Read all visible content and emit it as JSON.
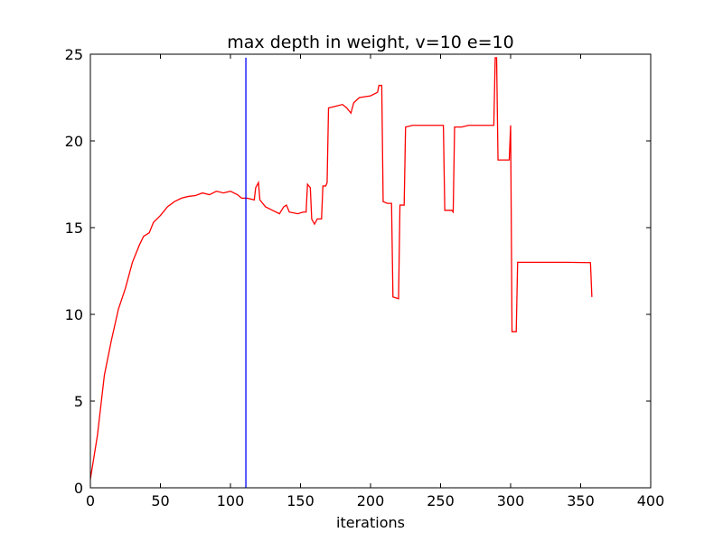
{
  "chart_data": {
    "type": "line",
    "title": "max depth in weight, v=10 e=10",
    "xlabel": "iterations",
    "series": [
      {
        "color": "#ff0000",
        "x": [
          0,
          5,
          10,
          15,
          20,
          25,
          30,
          35,
          38,
          42,
          45,
          50,
          55,
          60,
          65,
          70,
          75,
          80,
          85,
          90,
          95,
          100,
          105,
          108,
          112,
          117,
          118,
          120,
          121,
          125,
          130,
          135,
          138,
          140,
          142,
          148,
          152,
          154,
          155,
          157,
          158,
          160,
          162,
          165,
          166,
          168,
          169,
          170,
          175,
          180,
          183,
          186,
          188,
          192,
          200,
          205,
          206,
          208,
          209,
          212,
          215,
          216,
          220,
          221,
          224,
          225,
          230,
          240,
          252,
          253,
          258,
          259,
          260,
          265,
          270,
          280,
          288,
          289,
          290,
          291,
          295,
          299,
          300,
          301,
          304,
          305,
          320,
          340,
          357,
          358
        ],
        "values": [
          0.5,
          3,
          6.5,
          8.5,
          10.3,
          11.5,
          13,
          14,
          14.5,
          14.7,
          15.3,
          15.7,
          16.2,
          16.5,
          16.7,
          16.8,
          16.85,
          17,
          16.9,
          17.1,
          17,
          17.1,
          16.9,
          16.7,
          16.7,
          16.6,
          17.3,
          17.6,
          16.6,
          16.2,
          16,
          15.8,
          16.2,
          16.3,
          15.9,
          15.8,
          15.9,
          15.9,
          17.5,
          17.3,
          15.5,
          15.2,
          15.5,
          15.5,
          17.4,
          17.4,
          17.6,
          21.9,
          22,
          22.1,
          21.9,
          21.6,
          22.2,
          22.5,
          22.6,
          22.8,
          23.2,
          23.2,
          16.5,
          16.4,
          16.4,
          11,
          10.9,
          16.3,
          16.3,
          20.8,
          20.9,
          20.9,
          20.9,
          16,
          16,
          15.9,
          20.8,
          20.8,
          20.9,
          20.9,
          20.9,
          24.8,
          24.8,
          18.9,
          18.9,
          18.9,
          20.9,
          9,
          9,
          13,
          13,
          13,
          12.98,
          11
        ]
      },
      {
        "color": "#0000ff",
        "x": [
          111,
          111
        ],
        "values": [
          0,
          24.8
        ]
      }
    ],
    "xlim": [
      0,
      400
    ],
    "xticks": [
      0,
      50,
      100,
      150,
      200,
      250,
      300,
      350,
      400
    ],
    "ylim": [
      0,
      25
    ],
    "yticks": [
      0,
      5,
      10,
      15,
      20,
      25
    ]
  }
}
